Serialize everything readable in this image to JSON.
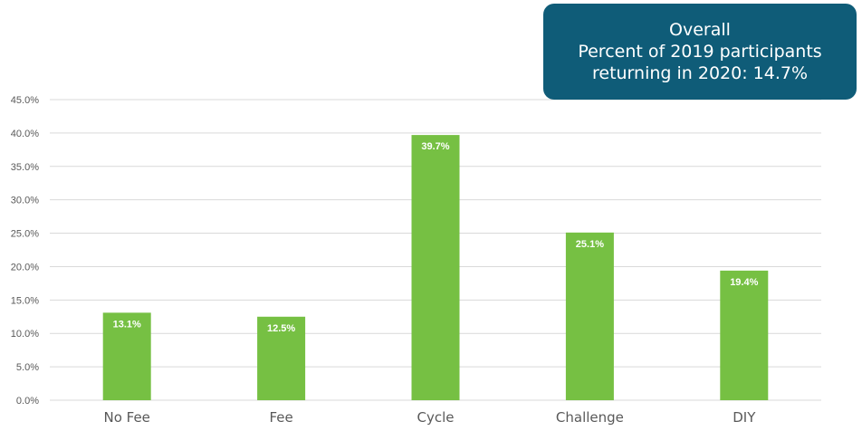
{
  "callout": {
    "line1": "Overall",
    "line2": "Percent of 2019 participants",
    "line3": "returning in 2020: 14.7%"
  },
  "chart_data": {
    "type": "bar",
    "categories": [
      "No Fee",
      "Fee",
      "Cycle",
      "Challenge",
      "DIY"
    ],
    "values": [
      13.1,
      12.5,
      39.7,
      25.1,
      19.4
    ],
    "data_labels": [
      "13.1%",
      "12.5%",
      "39.7%",
      "25.1%",
      "19.4%"
    ],
    "yticks": [
      0,
      5,
      10,
      15,
      20,
      25,
      30,
      35,
      40,
      45
    ],
    "ytick_labels": [
      "0.0%",
      "5.0%",
      "10.0%",
      "15.0%",
      "20.0%",
      "25.0%",
      "30.0%",
      "35.0%",
      "40.0%",
      "45.0%"
    ],
    "ylim": [
      0,
      45
    ],
    "grid": true,
    "bar_color": "#76c043",
    "grid_color": "#d9d9d9"
  }
}
